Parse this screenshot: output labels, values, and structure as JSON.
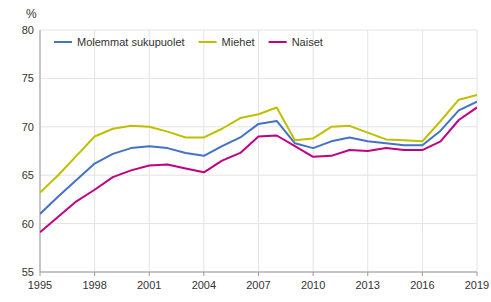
{
  "chart_data": {
    "type": "line",
    "y_label": "%",
    "x": [
      1995,
      1996,
      1997,
      1998,
      1999,
      2000,
      2001,
      2002,
      2003,
      2004,
      2005,
      2006,
      2007,
      2008,
      2009,
      2010,
      2011,
      2012,
      2013,
      2014,
      2015,
      2016,
      2017,
      2018,
      2019
    ],
    "series": [
      {
        "name": "Molemmat sukupuolet",
        "color": "#4472C4",
        "values": [
          61.0,
          62.8,
          64.5,
          66.2,
          67.2,
          67.8,
          68.0,
          67.8,
          67.3,
          67.0,
          68.0,
          68.9,
          70.3,
          70.6,
          68.3,
          67.8,
          68.5,
          68.9,
          68.5,
          68.3,
          68.1,
          68.1,
          69.6,
          71.7,
          72.6
        ]
      },
      {
        "name": "Miehet",
        "color": "#BFBF00",
        "values": [
          63.2,
          65.0,
          67.0,
          69.0,
          69.8,
          70.1,
          70.0,
          69.5,
          68.9,
          68.9,
          69.8,
          70.9,
          71.3,
          72.0,
          68.6,
          68.8,
          70.0,
          70.1,
          69.4,
          68.7,
          68.6,
          68.5,
          70.6,
          72.8,
          73.3
        ]
      },
      {
        "name": "Naiset",
        "color": "#C00080",
        "values": [
          59.1,
          60.7,
          62.3,
          63.5,
          64.8,
          65.5,
          66.0,
          66.1,
          65.7,
          65.3,
          66.5,
          67.3,
          69.0,
          69.1,
          68.0,
          66.9,
          67.0,
          67.6,
          67.5,
          67.8,
          67.6,
          67.6,
          68.5,
          70.7,
          72.0
        ]
      }
    ],
    "xlim": [
      1995,
      2019
    ],
    "xticks": [
      1995,
      1998,
      2001,
      2004,
      2007,
      2010,
      2013,
      2016,
      2019
    ],
    "ylim": [
      55,
      80
    ],
    "yticks": [
      55,
      60,
      65,
      70,
      75,
      80
    ],
    "grid": true,
    "legend": "upper left"
  }
}
